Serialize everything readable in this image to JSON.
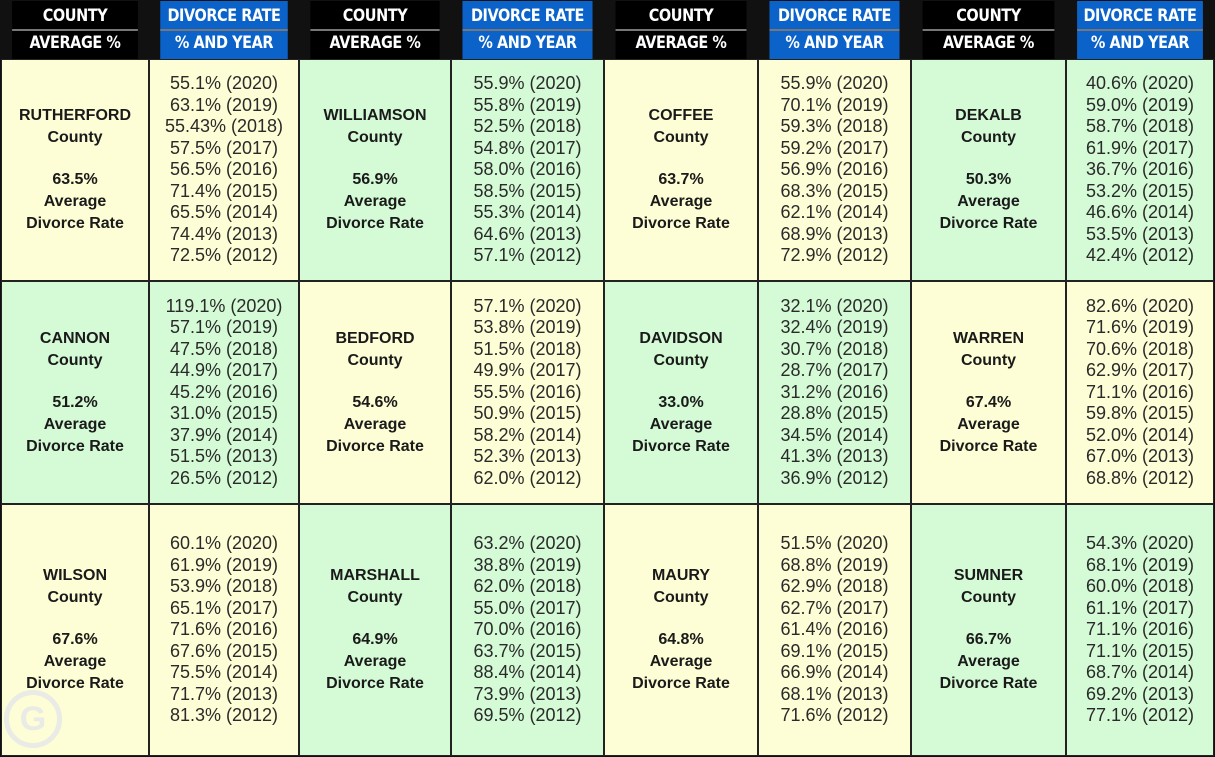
{
  "headers": {
    "county_line1": "COUNTY",
    "county_line2": "AVERAGE %",
    "rate_line1": "DIVORCE RATE",
    "rate_line2": "% AND YEAR"
  },
  "labels": {
    "county": "County",
    "average": "Average",
    "divorce_rate": "Divorce Rate"
  },
  "colors": {
    "header_blue": "#0b62c9",
    "cell_yellow": "#fdfdd6",
    "cell_green": "#d4fad6"
  },
  "logo_text": "G",
  "rows": [
    [
      {
        "name": "RUTHERFORD",
        "avg": "63.5%",
        "rates": [
          "55.1% (2020)",
          "63.1% (2019)",
          "55.43% (2018)",
          "57.5% (2017)",
          "56.5% (2016)",
          "71.4% (2015)",
          "65.5% (2014)",
          "74.4% (2013)",
          "72.5% (2012)"
        ]
      },
      {
        "name": "WILLIAMSON",
        "avg": "56.9%",
        "rates": [
          "55.9% (2020)",
          "55.8% (2019)",
          "52.5% (2018)",
          "54.8% (2017)",
          "58.0% (2016)",
          "58.5% (2015)",
          "55.3% (2014)",
          "64.6% (2013)",
          "57.1% (2012)"
        ]
      },
      {
        "name": "COFFEE",
        "avg": "63.7%",
        "rates": [
          "55.9% (2020)",
          "70.1% (2019)",
          "59.3% (2018)",
          "59.2% (2017)",
          "56.9% (2016)",
          "68.3% (2015)",
          "62.1% (2014)",
          "68.9% (2013)",
          "72.9% (2012)"
        ]
      },
      {
        "name": "DEKALB",
        "avg": "50.3%",
        "rates": [
          "40.6% (2020)",
          "59.0% (2019)",
          "58.7% (2018)",
          "61.9% (2017)",
          "36.7% (2016)",
          "53.2% (2015)",
          "46.6% (2014)",
          "53.5% (2013)",
          "42.4% (2012)"
        ]
      }
    ],
    [
      {
        "name": "CANNON",
        "avg": "51.2%",
        "rates": [
          "119.1% (2020)",
          "57.1% (2019)",
          "47.5% (2018)",
          "44.9% (2017)",
          "45.2% (2016)",
          "31.0% (2015)",
          "37.9% (2014)",
          "51.5% (2013)",
          "26.5% (2012)"
        ]
      },
      {
        "name": "BEDFORD",
        "avg": "54.6%",
        "rates": [
          "57.1% (2020)",
          "53.8% (2019)",
          "51.5% (2018)",
          "49.9% (2017)",
          "55.5% (2016)",
          "50.9% (2015)",
          "58.2% (2014)",
          "52.3% (2013)",
          "62.0% (2012)"
        ]
      },
      {
        "name": "DAVIDSON",
        "avg": "33.0%",
        "rates": [
          "32.1% (2020)",
          "32.4% (2019)",
          "30.7% (2018)",
          "28.7% (2017)",
          "31.2% (2016)",
          "28.8% (2015)",
          "34.5% (2014)",
          "41.3% (2013)",
          "36.9% (2012)"
        ]
      },
      {
        "name": "WARREN",
        "avg": "67.4%",
        "rates": [
          "82.6% (2020)",
          "71.6% (2019)",
          "70.6% (2018)",
          "62.9% (2017)",
          "71.1% (2016)",
          "59.8% (2015)",
          "52.0% (2014)",
          "67.0% (2013)",
          "68.8% (2012)"
        ]
      }
    ],
    [
      {
        "name": "WILSON",
        "avg": "67.6%",
        "rates": [
          "60.1% (2020)",
          "61.9% (2019)",
          "53.9% (2018)",
          "65.1% (2017)",
          "71.6% (2016)",
          "67.6% (2015)",
          "75.5% (2014)",
          "71.7% (2013)",
          "81.3% (2012)"
        ]
      },
      {
        "name": "MARSHALL",
        "avg": "64.9%",
        "rates": [
          "63.2% (2020)",
          "38.8% (2019)",
          "62.0% (2018)",
          "55.0% (2017)",
          "70.0% (2016)",
          "63.7% (2015)",
          "88.4% (2014)",
          "73.9% (2013)",
          "69.5% (2012)"
        ]
      },
      {
        "name": "MAURY",
        "avg": "64.8%",
        "rates": [
          "51.5% (2020)",
          "68.8% (2019)",
          "62.9% (2018)",
          "62.7% (2017)",
          "61.4% (2016)",
          "69.1% (2015)",
          "66.9% (2014)",
          "68.1% (2013)",
          "71.6% (2012)"
        ]
      },
      {
        "name": "SUMNER",
        "avg": "66.7%",
        "rates": [
          "54.3% (2020)",
          "68.1% (2019)",
          "60.0% (2018)",
          "61.1% (2017)",
          "71.1% (2016)",
          "71.1% (2015)",
          "68.7% (2014)",
          "69.2% (2013)",
          "77.1% (2012)"
        ]
      }
    ]
  ]
}
